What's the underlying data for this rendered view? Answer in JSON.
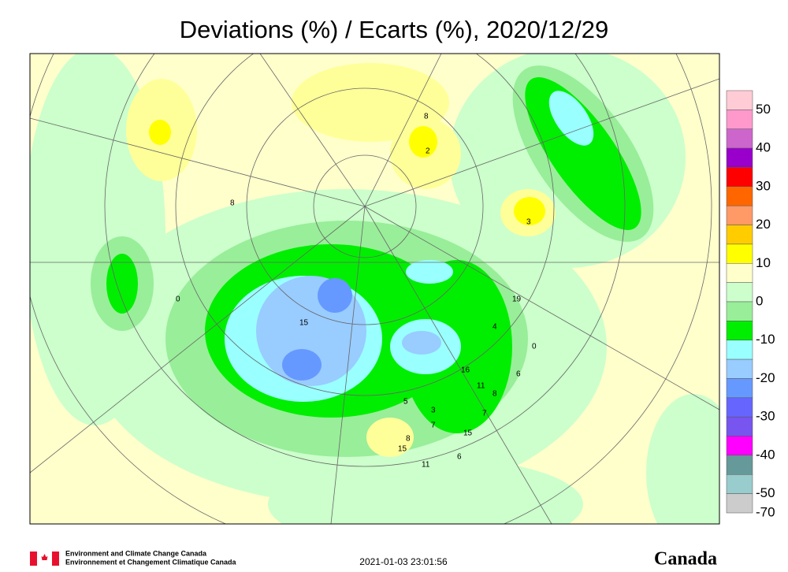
{
  "header": {
    "title": "Deviations (%) / Ecarts (%), 2020/12/29"
  },
  "map": {
    "station_labels": [
      "8",
      "0",
      "15",
      "16",
      "11",
      "8",
      "4",
      "19",
      "0",
      "6",
      "5",
      "3",
      "7",
      "8",
      "15",
      "11",
      "6",
      "15",
      "7",
      "8",
      "2",
      "3"
    ]
  },
  "legend": {
    "colors": [
      "#ffccd5",
      "#ff99cc",
      "#cc66cc",
      "#9900cc",
      "#ff0000",
      "#ff6600",
      "#ff9966",
      "#ffcc00",
      "#ffff00",
      "#ffffcc",
      "#ccffcc",
      "#99ee99",
      "#00ee00",
      "#99ffff",
      "#99ccff",
      "#6699ff",
      "#6666ff",
      "#7755ee",
      "#ff00ff",
      "#669999",
      "#99cccc",
      "#cccccc"
    ],
    "labels": [
      50,
      40,
      30,
      20,
      10,
      0,
      -10,
      -20,
      -30,
      -40,
      -50,
      -70
    ]
  },
  "footer": {
    "agency_en": "Environment and Climate Change Canada",
    "agency_fr": "Environnement et Changement Climatique Canada",
    "timestamp": "2021-01-03 23:01:56",
    "wordmark": "Canada"
  }
}
